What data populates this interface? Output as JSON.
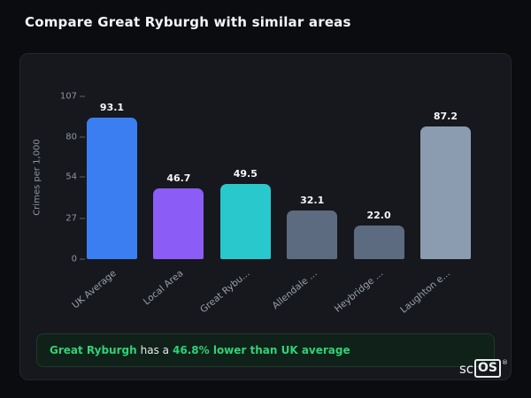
{
  "header": {
    "title": "Compare Great Ryburgh with similar areas"
  },
  "chart_data": {
    "type": "bar",
    "title": "",
    "xlabel": "",
    "ylabel": "Crimes per 1,000",
    "categories": [
      "UK Average",
      "Local Area",
      "Great Rybu...",
      "Allendale ...",
      "Heybridge ...",
      "Laughton e..."
    ],
    "values": [
      93.1,
      46.7,
      49.5,
      32.1,
      22.0,
      87.2
    ],
    "value_labels": [
      "93.1",
      "46.7",
      "49.5",
      "32.1",
      "22.0",
      "87.2"
    ],
    "bar_colors": [
      "#3b7ef2",
      "#8b5cf6",
      "#29c8cd",
      "#5c6b80",
      "#5c6b80",
      "#8b9cb1"
    ],
    "yticks": [
      0,
      27,
      54,
      80,
      107
    ],
    "ylim": [
      0,
      107
    ],
    "grid": false,
    "legend": false
  },
  "summary": {
    "subject": "Great Ryburgh",
    "connector": "has a",
    "highlight": "46.8% lower than UK average"
  },
  "logo": {
    "prefix": "sc",
    "box": "OS",
    "reg": "®"
  },
  "colors": {
    "page_bg": "#0b0c0f",
    "card_bg": "#16181d",
    "accent_green": "#2fd276",
    "summary_bg": "#102119"
  }
}
